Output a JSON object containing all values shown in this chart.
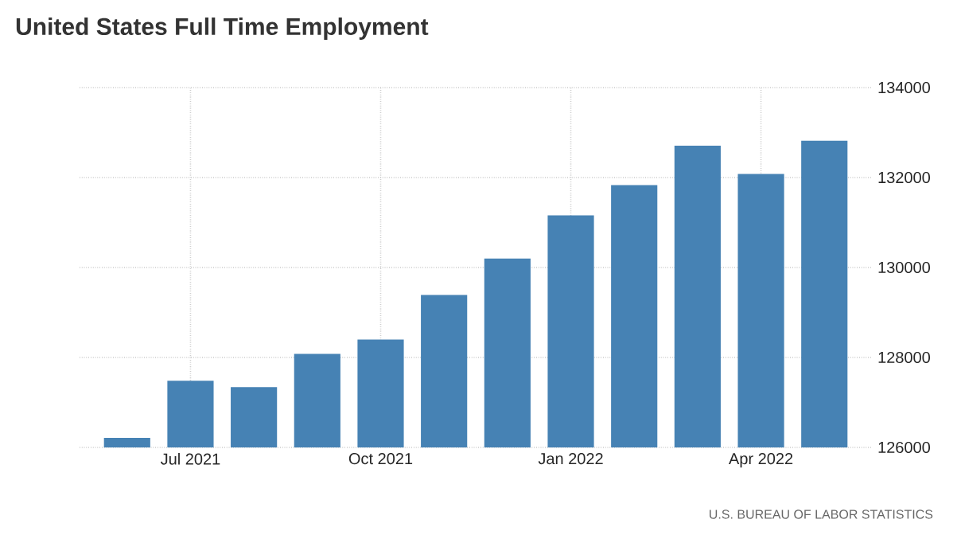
{
  "chart_data": {
    "type": "bar",
    "title": "United States Full Time Employment",
    "categories": [
      null,
      "Jul 2021",
      null,
      null,
      "Oct 2021",
      null,
      null,
      "Jan 2022",
      null,
      null,
      "Apr 2022",
      null
    ],
    "values": [
      126210,
      127480,
      127340,
      128080,
      128400,
      129390,
      130200,
      131160,
      131830,
      132710,
      132080,
      132820
    ],
    "color": "#4682b4",
    "ylim": [
      126000,
      134000
    ],
    "yticks": [
      126000,
      128000,
      130000,
      132000,
      134000
    ],
    "grid": true,
    "annotations": [
      "U.S. BUREAU OF LABOR STATISTICS"
    ]
  }
}
